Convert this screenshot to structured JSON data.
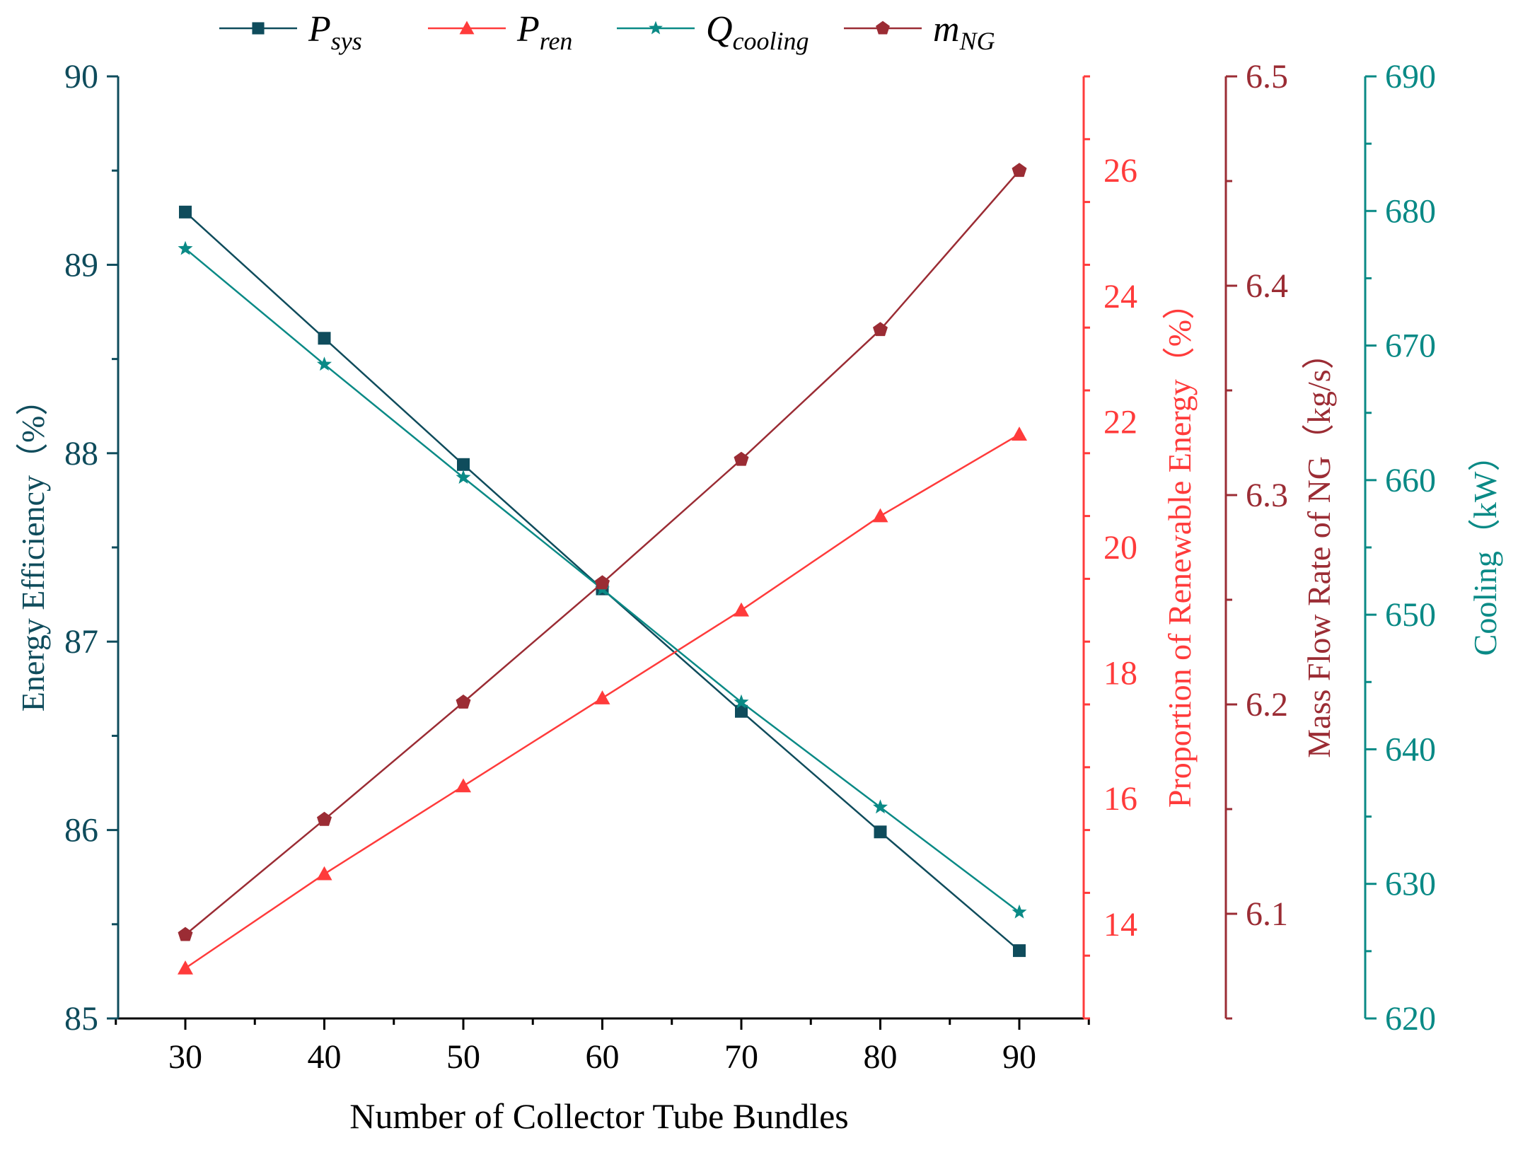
{
  "chart_data": {
    "type": "line",
    "xlabel": "Number of Collector Tube Bundles",
    "x": [
      30,
      40,
      50,
      60,
      70,
      80,
      90
    ],
    "x_ticks": [
      "30",
      "40",
      "50",
      "60",
      "70",
      "80",
      "90"
    ],
    "axes": [
      {
        "id": "eff",
        "label": "Energy Efficiency（%）",
        "color": "#0f4c5c",
        "range": [
          85,
          90
        ],
        "ticks": [
          "85",
          "86",
          "87",
          "88",
          "89",
          "90"
        ],
        "tick_values": [
          85,
          86,
          87,
          88,
          89,
          90
        ],
        "minor_step": 0.5
      },
      {
        "id": "ren",
        "label": "Proportion of Renewable Energy（%）",
        "color": "#ff3b3b",
        "range": [
          12.5,
          27.5
        ],
        "ticks": [
          "14",
          "16",
          "18",
          "20",
          "22",
          "24",
          "26"
        ],
        "tick_values": [
          14,
          16,
          18,
          20,
          22,
          24,
          26
        ],
        "minor_step": 1
      },
      {
        "id": "ng",
        "label": "Mass Flow Rate of NG（kg/s）",
        "color": "#9b2c34",
        "range": [
          6.05,
          6.5
        ],
        "ticks": [
          "6.1",
          "6.2",
          "6.3",
          "6.4",
          "6.5"
        ],
        "tick_values": [
          6.1,
          6.2,
          6.3,
          6.4,
          6.5
        ],
        "minor_step": 0.05
      },
      {
        "id": "cool",
        "label": "Cooling（kW）",
        "color": "#0a8a86",
        "range": [
          620,
          690
        ],
        "ticks": [
          "620",
          "630",
          "640",
          "650",
          "660",
          "670",
          "680",
          "690"
        ],
        "tick_values": [
          620,
          630,
          640,
          650,
          660,
          670,
          680,
          690
        ],
        "minor_step": 5
      }
    ],
    "series": [
      {
        "name": "P_sys",
        "legend_main": "P",
        "legend_sub": "sys",
        "axis": "eff",
        "marker": "square",
        "color": "#0f4c5c",
        "values": [
          89.28,
          88.61,
          87.94,
          87.28,
          86.63,
          85.99,
          85.36
        ]
      },
      {
        "name": "P_ren",
        "legend_main": "P",
        "legend_sub": "ren",
        "axis": "ren",
        "marker": "triangle",
        "color": "#ff3b3b",
        "values": [
          13.3,
          14.8,
          16.2,
          17.6,
          19.0,
          20.5,
          21.8
        ]
      },
      {
        "name": "Q_cooling",
        "legend_main": "Q",
        "legend_sub": "cooling",
        "axis": "cool",
        "marker": "star",
        "color": "#0a8a86",
        "values": [
          677.2,
          668.6,
          660.2,
          651.9,
          643.5,
          635.7,
          627.9
        ]
      },
      {
        "name": "m_NG",
        "legend_main": "m",
        "legend_sub": "NG",
        "axis": "ng",
        "marker": "pentagon",
        "color": "#9b2c34",
        "values": [
          6.09,
          6.145,
          6.201,
          6.258,
          6.317,
          6.379,
          6.455
        ]
      }
    ],
    "x_axis_color": "#000000",
    "legend_position": "top"
  }
}
